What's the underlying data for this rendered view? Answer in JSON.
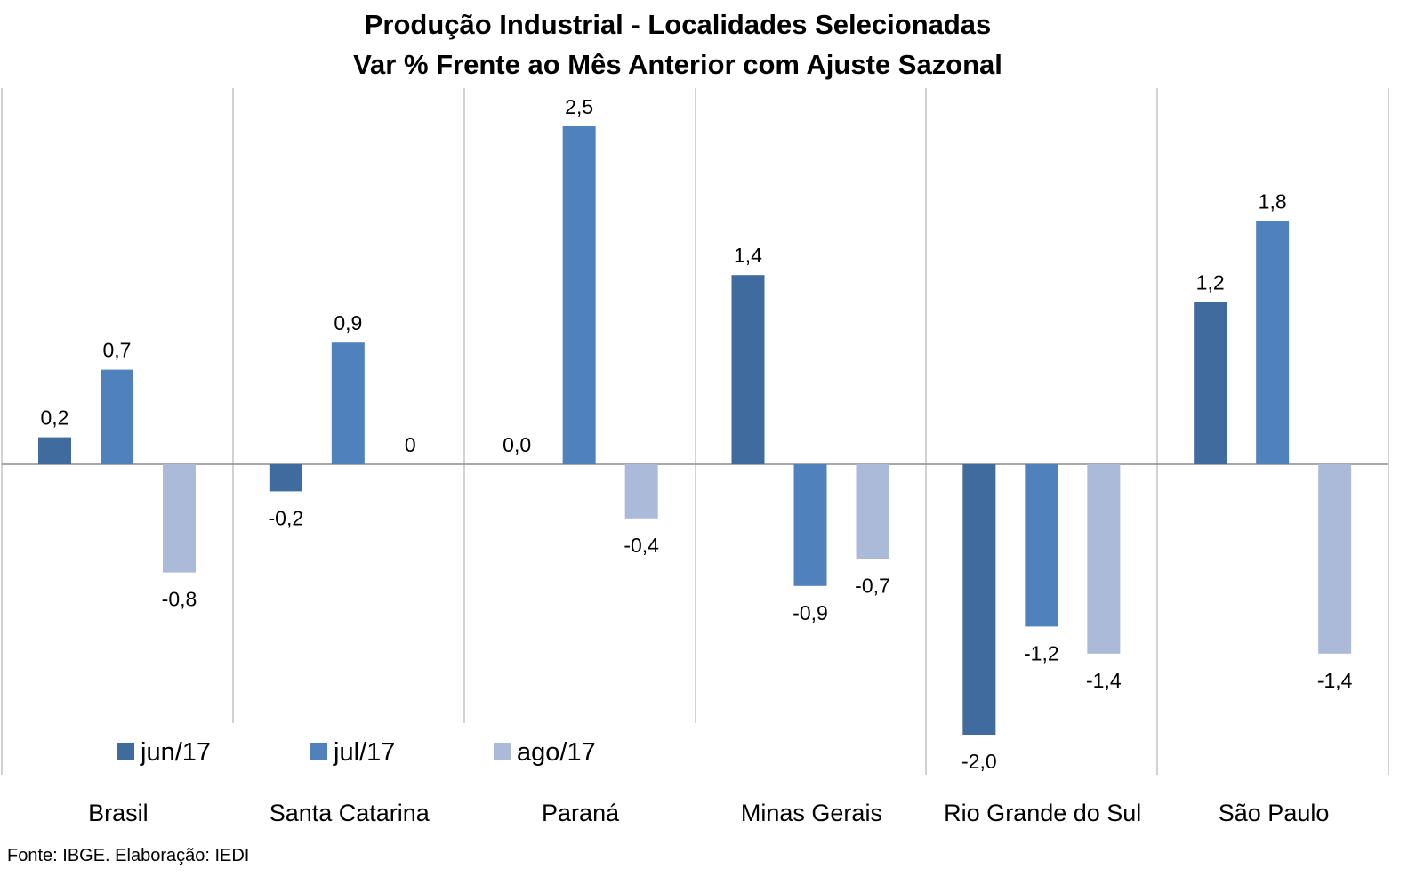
{
  "chart_data": {
    "type": "bar",
    "title": "Produção Industrial - Localidades Selecionadas",
    "subtitle": "Var % Frente ao Mês Anterior com Ajuste Sazonal",
    "categories": [
      "Brasil",
      "Santa Catarina",
      "Paraná",
      "Minas Gerais",
      "Rio Grande do Sul",
      "São Paulo"
    ],
    "series": [
      {
        "name": "jun/17",
        "color": "#3f6b9e",
        "values": [
          0.2,
          -0.2,
          0.0,
          1.4,
          -2.0,
          1.2
        ],
        "labels": [
          "0,2",
          "-0,2",
          "0,0",
          "1,4",
          "-2,0",
          "1,2"
        ]
      },
      {
        "name": "jul/17",
        "color": "#4f82bd",
        "values": [
          0.7,
          0.9,
          2.5,
          -0.9,
          -1.2,
          1.8
        ],
        "labels": [
          "0,7",
          "0,9",
          "2,5",
          "-0,9",
          "-1,2",
          "1,8"
        ]
      },
      {
        "name": "ago/17",
        "color": "#abbad8",
        "values": [
          -0.8,
          0.0,
          -0.4,
          -0.7,
          -1.4,
          -1.4
        ],
        "labels": [
          "-0,8",
          "0",
          "-0,4",
          "-0,7",
          "-1,4",
          "-1,4"
        ]
      }
    ],
    "ylim": [
      -2.3,
      2.8
    ],
    "grid": false,
    "legend": "bottom-left"
  },
  "source": "Fonte: IBGE. Elaboração: IEDI"
}
